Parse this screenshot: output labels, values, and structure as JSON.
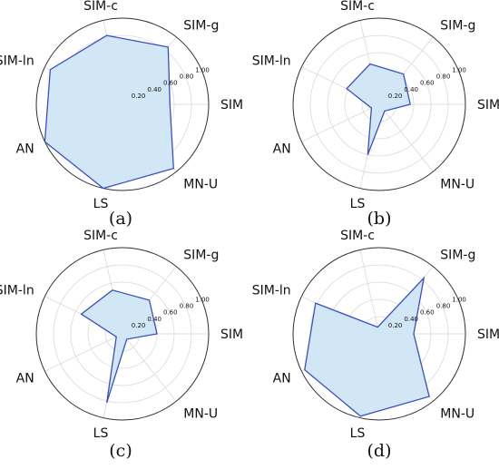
{
  "chart_data": [
    {
      "type": "radar",
      "caption": "(a)",
      "axes": [
        "SIM",
        "SIM-g",
        "SIM-c",
        "SIM-ln",
        "AN",
        "LS",
        "MN-U"
      ],
      "radial_ticks": [
        "0.20",
        "0.40",
        "0.60",
        "0.80",
        "1.00"
      ],
      "rlim": [
        0,
        1
      ],
      "values": [
        0.55,
        0.85,
        0.82,
        0.93,
        1.0,
        1.0,
        0.95
      ]
    },
    {
      "type": "radar",
      "caption": "(b)",
      "axes": [
        "SIM",
        "SIM-g",
        "SIM-c",
        "SIM-ln",
        "AN",
        "LS",
        "MN-U"
      ],
      "radial_ticks": [
        "0.20",
        "0.40",
        "0.60",
        "0.80",
        "1.00"
      ],
      "rlim": [
        0,
        1
      ],
      "values": [
        0.36,
        0.45,
        0.48,
        0.42,
        0.1,
        0.6,
        0.1
      ]
    },
    {
      "type": "radar",
      "caption": "(c)",
      "axes": [
        "SIM",
        "SIM-g",
        "SIM-c",
        "SIM-ln",
        "AN",
        "LS",
        "MN-U"
      ],
      "radial_ticks": [
        "0.20",
        "0.40",
        "0.60",
        "0.80",
        "1.00"
      ],
      "rlim": [
        0,
        1
      ],
      "values": [
        0.4,
        0.5,
        0.52,
        0.53,
        0.08,
        0.82,
        0.08
      ]
    },
    {
      "type": "radar",
      "caption": "(d)",
      "axes": [
        "SIM",
        "SIM-g",
        "SIM-c",
        "SIM-ln",
        "AN",
        "LS",
        "MN-U"
      ],
      "radial_ticks": [
        "0.20",
        "0.40",
        "0.60",
        "0.80",
        "1.00"
      ],
      "rlim": [
        0,
        1
      ],
      "values": [
        0.4,
        0.83,
        0.08,
        0.82,
        0.96,
        0.98,
        0.93
      ]
    }
  ]
}
